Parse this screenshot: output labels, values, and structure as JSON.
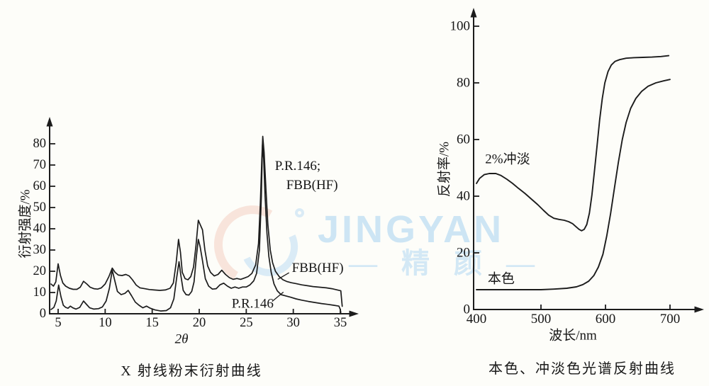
{
  "page": {
    "background": "#fdfdf9",
    "ink": "#1c1c1c",
    "text_color": "#161616"
  },
  "watermark": {
    "brand_text": "JINGYAN",
    "brand_cn": "— 精 颜 —",
    "color_blue": "#bddef3",
    "color_pink": "#f7ded4"
  },
  "chart_data": [
    {
      "id": "xrd",
      "type": "line",
      "caption": "X 射线粉末衍射曲线",
      "xlabel": "2θ",
      "ylabel": "衍射强度/%",
      "x_range": [
        5,
        35
      ],
      "y_range": [
        0,
        80
      ],
      "x_ticks": [
        5,
        10,
        15,
        20,
        25,
        30,
        35
      ],
      "y_ticks": [
        0,
        10,
        20,
        30,
        40,
        50,
        60,
        70,
        80
      ],
      "grid": false,
      "legend": "inline-annotations",
      "series": [
        {
          "name": "FBB(HF)",
          "points": [
            [
              4.25,
              14
            ],
            [
              4.5,
              13
            ],
            [
              4.75,
              15
            ],
            [
              5.0,
              23.5
            ],
            [
              5.25,
              18
            ],
            [
              5.5,
              14.5
            ],
            [
              5.8,
              13
            ],
            [
              6.2,
              12
            ],
            [
              6.6,
              11.5
            ],
            [
              7.0,
              11.5
            ],
            [
              7.35,
              12.5
            ],
            [
              7.7,
              15.3
            ],
            [
              8.05,
              14
            ],
            [
              8.4,
              12.5
            ],
            [
              8.8,
              11.8
            ],
            [
              9.2,
              11.6
            ],
            [
              9.6,
              12.2
            ],
            [
              10.0,
              14
            ],
            [
              10.4,
              17.5
            ],
            [
              10.75,
              21.5
            ],
            [
              11.05,
              19.5
            ],
            [
              11.4,
              18.2
            ],
            [
              11.8,
              18
            ],
            [
              12.2,
              18.5
            ],
            [
              12.55,
              17.8
            ],
            [
              12.9,
              16
            ],
            [
              13.3,
              13.5
            ],
            [
              13.7,
              12.2
            ],
            [
              14.2,
              11.8
            ],
            [
              14.7,
              11.4
            ],
            [
              15.2,
              11.2
            ],
            [
              15.8,
              11
            ],
            [
              16.4,
              11.2
            ],
            [
              16.9,
              12
            ],
            [
              17.25,
              14.5
            ],
            [
              17.55,
              24
            ],
            [
              17.8,
              35
            ],
            [
              18.0,
              29
            ],
            [
              18.2,
              19.5
            ],
            [
              18.5,
              16.5
            ],
            [
              18.8,
              16
            ],
            [
              19.1,
              17.5
            ],
            [
              19.4,
              22
            ],
            [
              19.65,
              32
            ],
            [
              19.9,
              44
            ],
            [
              20.1,
              42
            ],
            [
              20.35,
              39.5
            ],
            [
              20.6,
              30
            ],
            [
              20.9,
              22.5
            ],
            [
              21.2,
              19.5
            ],
            [
              21.6,
              17.8
            ],
            [
              22.0,
              18.5
            ],
            [
              22.4,
              20.5
            ],
            [
              22.8,
              18.5
            ],
            [
              23.2,
              17
            ],
            [
              23.6,
              16.2
            ],
            [
              24.0,
              16.6
            ],
            [
              24.4,
              16.2
            ],
            [
              24.8,
              16.8
            ],
            [
              25.2,
              17.5
            ],
            [
              25.6,
              19
            ],
            [
              26.0,
              23
            ],
            [
              26.3,
              33
            ],
            [
              26.5,
              52
            ],
            [
              26.65,
              72
            ],
            [
              26.75,
              83.5
            ],
            [
              26.9,
              76
            ],
            [
              27.1,
              58
            ],
            [
              27.3,
              42
            ],
            [
              27.55,
              30
            ],
            [
              27.8,
              24
            ],
            [
              28.1,
              20
            ],
            [
              28.5,
              17.5
            ],
            [
              28.9,
              16
            ],
            [
              29.3,
              15.2
            ],
            [
              29.8,
              14.6
            ],
            [
              30.3,
              14.2
            ],
            [
              30.9,
              13.6
            ],
            [
              31.5,
              13.2
            ],
            [
              32.1,
              12.8
            ],
            [
              32.8,
              12.5
            ],
            [
              33.5,
              12.2
            ],
            [
              34.1,
              11.8
            ],
            [
              34.7,
              11.2
            ],
            [
              35.05,
              10.8
            ],
            [
              35.15,
              6
            ],
            [
              35.2,
              3.5
            ]
          ]
        },
        {
          "name": "P.R.146",
          "points": [
            [
              4.25,
              2
            ],
            [
              4.55,
              3
            ],
            [
              4.8,
              6
            ],
            [
              5.05,
              13.5
            ],
            [
              5.3,
              8
            ],
            [
              5.55,
              4
            ],
            [
              5.8,
              3
            ],
            [
              6.05,
              2.6
            ],
            [
              6.3,
              3.6
            ],
            [
              6.55,
              2.8
            ],
            [
              6.9,
              2.2
            ],
            [
              7.3,
              3
            ],
            [
              7.7,
              6
            ],
            [
              8.0,
              4.5
            ],
            [
              8.35,
              2.8
            ],
            [
              8.8,
              2.2
            ],
            [
              9.3,
              2.4
            ],
            [
              9.7,
              3.2
            ],
            [
              10.1,
              6
            ],
            [
              10.45,
              12
            ],
            [
              10.75,
              20.5
            ],
            [
              11.0,
              16
            ],
            [
              11.3,
              10.5
            ],
            [
              11.7,
              9
            ],
            [
              12.1,
              9.6
            ],
            [
              12.45,
              11
            ],
            [
              12.8,
              8.5
            ],
            [
              13.2,
              5.5
            ],
            [
              13.6,
              4
            ],
            [
              14.0,
              2.8
            ],
            [
              14.4,
              3.6
            ],
            [
              14.8,
              2.6
            ],
            [
              15.3,
              1.8
            ],
            [
              15.9,
              1.3
            ],
            [
              16.5,
              1.5
            ],
            [
              16.95,
              2.8
            ],
            [
              17.3,
              7
            ],
            [
              17.6,
              17
            ],
            [
              17.85,
              24.5
            ],
            [
              18.05,
              18
            ],
            [
              18.3,
              11
            ],
            [
              18.6,
              9
            ],
            [
              18.9,
              8.8
            ],
            [
              19.2,
              10.5
            ],
            [
              19.45,
              15
            ],
            [
              19.7,
              27
            ],
            [
              19.9,
              35
            ],
            [
              20.1,
              31.5
            ],
            [
              20.35,
              25
            ],
            [
              20.65,
              16.5
            ],
            [
              21.0,
              13
            ],
            [
              21.4,
              11.6
            ],
            [
              21.8,
              11.8
            ],
            [
              22.2,
              13.6
            ],
            [
              22.6,
              14.4
            ],
            [
              23.0,
              13
            ],
            [
              23.4,
              12
            ],
            [
              23.8,
              12.6
            ],
            [
              24.2,
              12
            ],
            [
              24.6,
              12.6
            ],
            [
              25.0,
              12.6
            ],
            [
              25.4,
              13.6
            ],
            [
              25.8,
              15.5
            ],
            [
              26.1,
              19
            ],
            [
              26.4,
              30
            ],
            [
              26.6,
              55
            ],
            [
              26.72,
              79.5
            ],
            [
              26.85,
              73
            ],
            [
              27.0,
              55
            ],
            [
              27.2,
              38
            ],
            [
              27.4,
              27
            ],
            [
              27.65,
              19.5
            ],
            [
              27.95,
              14
            ],
            [
              28.3,
              10.8
            ],
            [
              28.7,
              9
            ],
            [
              29.2,
              8.4
            ],
            [
              29.7,
              7.8
            ],
            [
              30.3,
              7
            ],
            [
              30.9,
              6.4
            ],
            [
              31.6,
              5.8
            ],
            [
              32.3,
              5.3
            ],
            [
              33.0,
              4.8
            ],
            [
              33.7,
              4.4
            ],
            [
              34.3,
              4
            ],
            [
              34.85,
              3.6
            ],
            [
              35.0,
              2
            ],
            [
              35.05,
              0.6
            ]
          ]
        }
      ],
      "annotations": [
        {
          "text": "P.R.146;",
          "x": 28.05,
          "y": 69.5
        },
        {
          "text": "FBB(HF)",
          "x": 29.25,
          "y": 60.5
        },
        {
          "text": "FBB(HF)",
          "x": 29.85,
          "y": 21.5,
          "leader": {
            "x1": 29.55,
            "y1": 19.3,
            "x2": 28.35,
            "y2": 16.2
          }
        },
        {
          "text": "P.R.146",
          "x": 23.45,
          "y": 4.6,
          "leader": {
            "x1": 27.75,
            "y1": 5.8,
            "x2": 28.95,
            "y2": 10.2
          }
        }
      ]
    },
    {
      "id": "reflect",
      "type": "line",
      "caption": "本色、冲淡色光谱反射曲线",
      "xlabel": "波长/nm",
      "ylabel": "反射率/%",
      "x_range": [
        400,
        700
      ],
      "y_range": [
        0,
        100
      ],
      "x_ticks": [
        400,
        500,
        600,
        700
      ],
      "y_ticks": [
        0,
        20,
        40,
        60,
        80,
        100
      ],
      "grid": false,
      "legend": "inline-annotations",
      "series": [
        {
          "name": "2%冲淡",
          "points": [
            [
              400,
              44.5
            ],
            [
              405,
              46.3
            ],
            [
              412,
              47.6
            ],
            [
              420,
              48
            ],
            [
              430,
              48
            ],
            [
              438,
              47.3
            ],
            [
              447,
              46
            ],
            [
              456,
              44.5
            ],
            [
              465,
              42.8
            ],
            [
              475,
              41
            ],
            [
              485,
              39
            ],
            [
              495,
              37
            ],
            [
              504,
              35
            ],
            [
              512,
              33.3
            ],
            [
              520,
              32.2
            ],
            [
              528,
              31.8
            ],
            [
              536,
              31.5
            ],
            [
              543,
              31
            ],
            [
              549,
              30.3
            ],
            [
              554,
              29.3
            ],
            [
              559,
              28.3
            ],
            [
              563,
              27.8
            ],
            [
              567,
              28.3
            ],
            [
              571,
              30
            ],
            [
              575,
              34
            ],
            [
              579,
              40.5
            ],
            [
              583,
              49
            ],
            [
              587,
              58
            ],
            [
              591,
              67
            ],
            [
              595,
              74.5
            ],
            [
              599,
              80
            ],
            [
              604,
              84
            ],
            [
              609,
              86.3
            ],
            [
              615,
              87.6
            ],
            [
              622,
              88.2
            ],
            [
              632,
              88.7
            ],
            [
              644,
              88.9
            ],
            [
              658,
              89
            ],
            [
              672,
              89.1
            ],
            [
              686,
              89.3
            ],
            [
              698,
              89.6
            ]
          ]
        },
        {
          "name": "本色",
          "points": [
            [
              400,
              7
            ],
            [
              425,
              7
            ],
            [
              450,
              7
            ],
            [
              475,
              7
            ],
            [
              500,
              7
            ],
            [
              520,
              7.2
            ],
            [
              540,
              7.5
            ],
            [
              555,
              8
            ],
            [
              565,
              8.8
            ],
            [
              574,
              10
            ],
            [
              582,
              12
            ],
            [
              589,
              15
            ],
            [
              596,
              19.5
            ],
            [
              602,
              26
            ],
            [
              608,
              34
            ],
            [
              614,
              43
            ],
            [
              620,
              52
            ],
            [
              626,
              60
            ],
            [
              632,
              66
            ],
            [
              639,
              71
            ],
            [
              647,
              74.5
            ],
            [
              656,
              77
            ],
            [
              666,
              78.8
            ],
            [
              678,
              80
            ],
            [
              690,
              80.7
            ],
            [
              700,
              81.2
            ]
          ]
        }
      ],
      "annotations": [
        {
          "text": "2%冲淡",
          "x": 413.5,
          "y": 53
        },
        {
          "text": "本色",
          "x": 417.5,
          "y": 10.8
        }
      ]
    }
  ]
}
